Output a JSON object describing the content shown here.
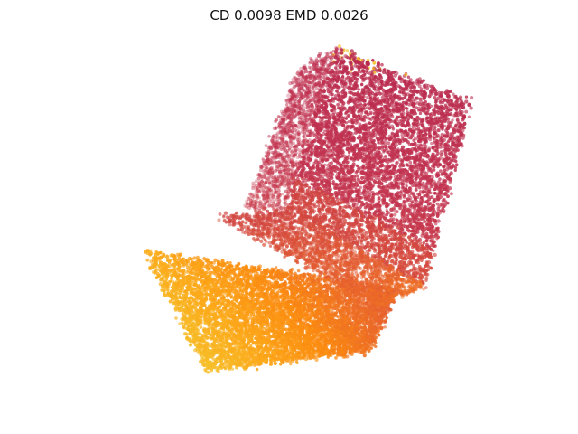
{
  "figure": {
    "title": "CD 0.0098  EMD 0.0026"
  },
  "colors": {
    "background": "#ffffff",
    "gradient": [
      "#f5c22a",
      "#fca91a",
      "#fb8a10",
      "#e8632d",
      "#d4493f",
      "#c33550",
      "#b82a4f"
    ]
  },
  "point_cloud": {
    "description": "3D point cloud of a chair viewed obliquely, colored by depth",
    "point_marker": "dot",
    "axes_visible": false
  }
}
